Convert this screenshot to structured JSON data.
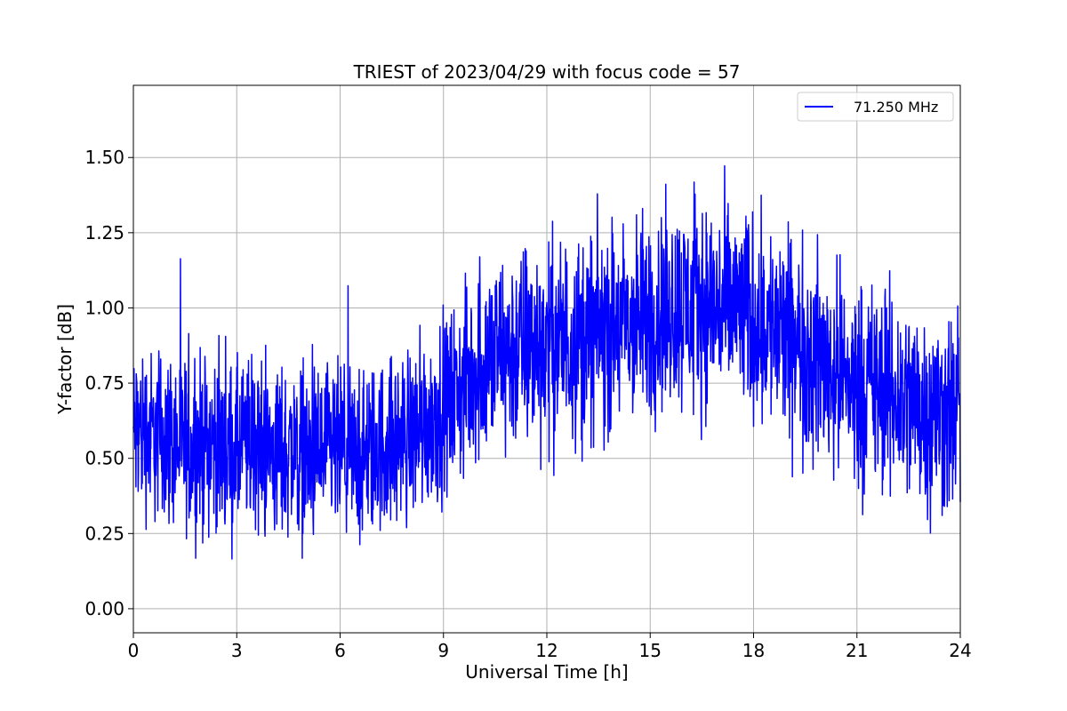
{
  "chart_data": {
    "type": "line",
    "title": "TRIEST of 2023/04/29 with focus code = 57",
    "xlabel": "Universal Time [h]",
    "ylabel": "Y-factor [dB]",
    "xlim": [
      0,
      24
    ],
    "ylim": [
      -0.08,
      1.74
    ],
    "xticks": [
      0,
      3,
      6,
      9,
      12,
      15,
      18,
      21,
      24
    ],
    "xtick_labels": [
      "0",
      "3",
      "6",
      "9",
      "12",
      "15",
      "18",
      "21",
      "24"
    ],
    "yticks": [
      0.0,
      0.25,
      0.5,
      0.75,
      1.0,
      1.25,
      1.5
    ],
    "ytick_labels": [
      "0.00",
      "0.25",
      "0.50",
      "0.75",
      "1.00",
      "1.25",
      "1.50"
    ],
    "grid": true,
    "legend_position": "top-right",
    "series": [
      {
        "name": "71.250 MHz",
        "color": "#0000ff",
        "x": [
          0.0,
          0.25,
          0.5,
          0.75,
          1.0,
          1.25,
          1.5,
          1.75,
          2.0,
          2.25,
          2.5,
          2.75,
          3.0,
          3.25,
          3.5,
          3.75,
          4.0,
          4.25,
          4.5,
          4.75,
          5.0,
          5.25,
          5.5,
          5.75,
          6.0,
          6.25,
          6.5,
          6.75,
          7.0,
          7.25,
          7.5,
          7.75,
          8.0,
          8.25,
          8.5,
          8.75,
          9.0,
          9.25,
          9.5,
          9.75,
          10.0,
          10.25,
          10.5,
          10.75,
          11.0,
          11.25,
          11.5,
          11.75,
          12.0,
          12.25,
          12.5,
          12.75,
          13.0,
          13.25,
          13.5,
          13.75,
          14.0,
          14.25,
          14.5,
          14.75,
          15.0,
          15.25,
          15.5,
          15.75,
          16.0,
          16.25,
          16.5,
          16.75,
          17.0,
          17.25,
          17.5,
          17.75,
          18.0,
          18.25,
          18.5,
          18.75,
          19.0,
          19.25,
          19.5,
          19.75,
          20.0,
          20.25,
          20.5,
          20.75,
          21.0,
          21.25,
          21.5,
          21.75,
          22.0,
          22.25,
          22.5,
          22.75,
          23.0,
          23.25,
          23.5,
          23.75,
          24.0
        ],
        "y": [
          0.58,
          0.6,
          0.57,
          0.58,
          0.57,
          0.55,
          0.54,
          0.54,
          0.55,
          0.56,
          0.54,
          0.52,
          0.52,
          0.54,
          0.55,
          0.53,
          0.52,
          0.52,
          0.53,
          0.52,
          0.5,
          0.5,
          0.51,
          0.52,
          0.52,
          0.51,
          0.5,
          0.5,
          0.52,
          0.54,
          0.55,
          0.56,
          0.58,
          0.6,
          0.62,
          0.64,
          0.67,
          0.7,
          0.73,
          0.76,
          0.8,
          0.82,
          0.84,
          0.85,
          0.86,
          0.87,
          0.87,
          0.88,
          0.89,
          0.89,
          0.89,
          0.9,
          0.91,
          0.91,
          0.92,
          0.92,
          0.93,
          0.94,
          0.94,
          0.95,
          0.97,
          0.98,
          0.99,
          1.0,
          1.01,
          1.01,
          1.02,
          1.01,
          1.0,
          1.0,
          0.99,
          0.98,
          0.97,
          0.96,
          0.94,
          0.92,
          0.9,
          0.88,
          0.86,
          0.84,
          0.82,
          0.8,
          0.78,
          0.76,
          0.75,
          0.74,
          0.73,
          0.72,
          0.71,
          0.7,
          0.69,
          0.68,
          0.67,
          0.66,
          0.65,
          0.65,
          0.64
        ],
        "noise_amplitude": [
          0.42,
          0.42,
          0.42,
          0.42,
          0.42,
          0.42,
          0.42,
          0.42,
          0.42,
          0.42,
          0.42,
          0.42,
          0.42,
          0.42,
          0.42,
          0.42,
          0.42,
          0.42,
          0.42,
          0.42,
          0.42,
          0.42,
          0.42,
          0.42,
          0.42,
          0.42,
          0.42,
          0.42,
          0.42,
          0.42,
          0.42,
          0.42,
          0.42,
          0.42,
          0.42,
          0.42,
          0.42,
          0.43,
          0.44,
          0.45,
          0.46,
          0.47,
          0.48,
          0.49,
          0.5,
          0.5,
          0.5,
          0.5,
          0.5,
          0.5,
          0.5,
          0.5,
          0.5,
          0.5,
          0.5,
          0.5,
          0.5,
          0.5,
          0.5,
          0.5,
          0.5,
          0.5,
          0.5,
          0.5,
          0.5,
          0.5,
          0.5,
          0.5,
          0.5,
          0.5,
          0.5,
          0.5,
          0.5,
          0.5,
          0.5,
          0.5,
          0.5,
          0.5,
          0.5,
          0.5,
          0.5,
          0.5,
          0.5,
          0.5,
          0.5,
          0.5,
          0.5,
          0.5,
          0.5,
          0.5,
          0.5,
          0.5,
          0.5,
          0.5,
          0.5,
          0.5,
          0.5
        ]
      }
    ]
  }
}
